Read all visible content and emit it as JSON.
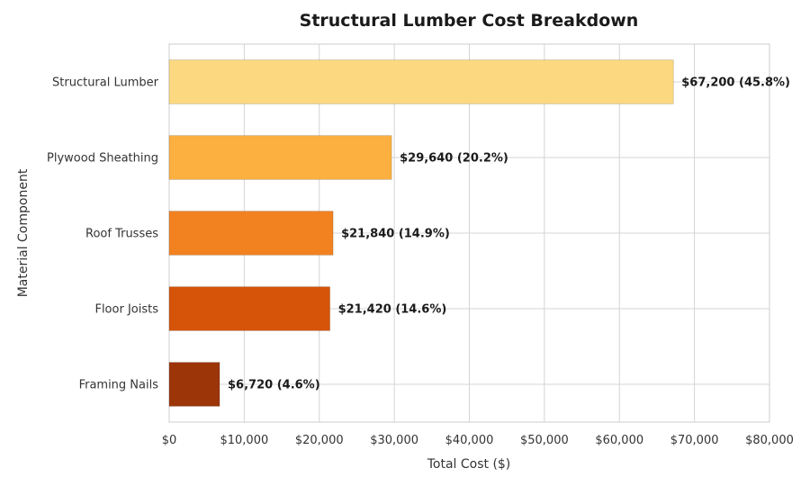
{
  "chart_data": {
    "type": "bar",
    "orientation": "horizontal",
    "title": "Structural Lumber Cost Breakdown",
    "xlabel": "Total Cost ($)",
    "ylabel": "Material Component",
    "xlim": [
      0,
      80000
    ],
    "x_ticks": [
      0,
      10000,
      20000,
      30000,
      40000,
      50000,
      60000,
      70000,
      80000
    ],
    "x_tick_labels": [
      "$0",
      "$10,000",
      "$20,000",
      "$30,000",
      "$40,000",
      "$50,000",
      "$60,000",
      "$70,000",
      "$80,000"
    ],
    "categories": [
      "Structural Lumber",
      "Plywood Sheathing",
      "Roof Trusses",
      "Floor Joists",
      "Framing Nails"
    ],
    "values": [
      67200,
      29640,
      21840,
      21420,
      6720
    ],
    "data_labels": [
      "$67,200 (45.8%)",
      "$29,640 (20.2%)",
      "$21,840 (14.9%)",
      "$21,420 (14.6%)",
      "$6,720 (4.6%)"
    ],
    "colors": [
      "#fcd980",
      "#fbb040",
      "#f28220",
      "#d5540a",
      "#9c3508"
    ],
    "grid": true,
    "legend": "none"
  }
}
